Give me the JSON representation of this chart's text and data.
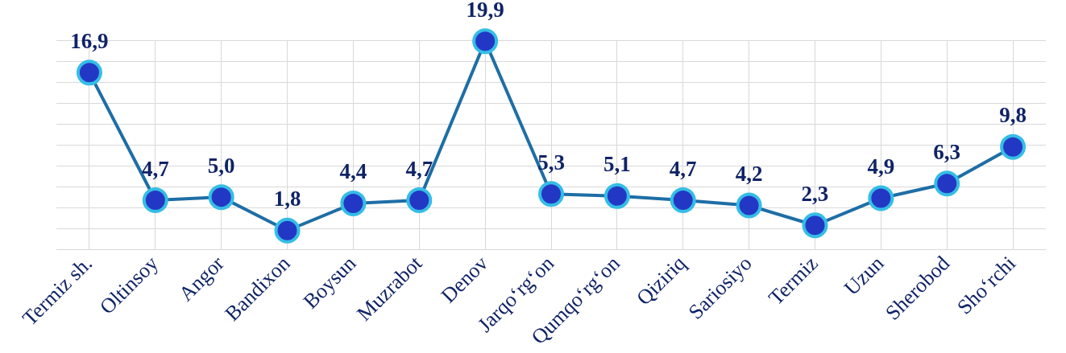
{
  "chart_data": {
    "type": "line",
    "categories": [
      "Termiz sh.",
      "Oltinsoy",
      "Angor",
      "Bandixon",
      "Boysun",
      "Muzrabot",
      "Denov",
      "Jarqo‘rg‘on",
      "Qumqo‘rg‘on",
      "Qiziriq",
      "Sariosiyo",
      "Termiz",
      "Uzun",
      "Sherobod",
      "Sho‘rchi"
    ],
    "series": [
      {
        "color": "#1e6ea6",
        "values": [
          16.9,
          4.7,
          5.0,
          1.8,
          4.4,
          4.7,
          19.9,
          5.3,
          5.1,
          4.7,
          4.2,
          2.3,
          4.9,
          6.3,
          9.8
        ],
        "value_labels": [
          "16,9",
          "4,7",
          "5,0",
          "1,8",
          "4,4",
          "4,7",
          "19,9",
          "5,3",
          "5,1",
          "4,7",
          "4,2",
          "2,3",
          "4,9",
          "6,3",
          "9,8"
        ]
      }
    ],
    "grid": true,
    "tick_labels": "x",
    "legend": false,
    "marker": "circle",
    "line_style": "solid"
  }
}
